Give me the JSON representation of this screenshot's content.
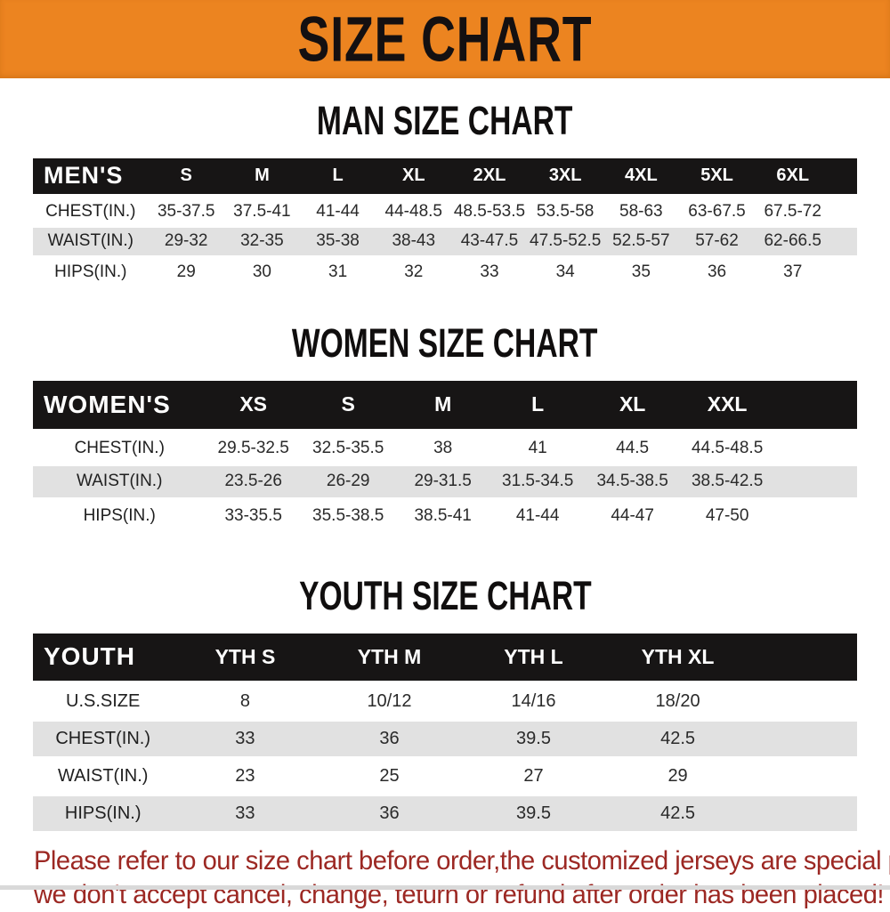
{
  "banner": {
    "title": "SIZE CHART"
  },
  "colors": {
    "banner_bg": "#ec8420",
    "header_bar": "#171515",
    "row_stripe": "#e1e1e1",
    "footer_text": "#9c2823"
  },
  "sections": [
    {
      "heading": "MAN SIZE CHART",
      "header_label": "MEN'S",
      "columns": [
        "S",
        "M",
        "L",
        "XL",
        "2XL",
        "3XL",
        "4XL",
        "5XL",
        "6XL"
      ],
      "rows": [
        {
          "label": "CHEST(IN.)",
          "values": [
            "35-37.5",
            "37.5-41",
            "41-44",
            "44-48.5",
            "48.5-53.5",
            "53.5-58",
            "58-63",
            "63-67.5",
            "67.5-72"
          ]
        },
        {
          "label": "WAIST(IN.)",
          "values": [
            "29-32",
            "32-35",
            "35-38",
            "38-43",
            "43-47.5",
            "47.5-52.5",
            "52.5-57",
            "57-62",
            "62-66.5"
          ]
        },
        {
          "label": "HIPS(IN.)",
          "values": [
            "29",
            "30",
            "31",
            "32",
            "33",
            "34",
            "35",
            "36",
            "37"
          ]
        }
      ]
    },
    {
      "heading": "WOMEN SIZE CHART",
      "header_label": "WOMEN'S",
      "columns": [
        "XS",
        "S",
        "M",
        "L",
        "XL",
        "XXL"
      ],
      "rows": [
        {
          "label": "CHEST(IN.)",
          "values": [
            "29.5-32.5",
            "32.5-35.5",
            "38",
            "41",
            "44.5",
            "44.5-48.5"
          ]
        },
        {
          "label": "WAIST(IN.)",
          "values": [
            "23.5-26",
            "26-29",
            "29-31.5",
            "31.5-34.5",
            "34.5-38.5",
            "38.5-42.5"
          ]
        },
        {
          "label": "HIPS(IN.)",
          "values": [
            "33-35.5",
            "35.5-38.5",
            "38.5-41",
            "41-44",
            "44-47",
            "47-50"
          ]
        }
      ]
    },
    {
      "heading": "YOUTH SIZE CHART",
      "header_label": "YOUTH",
      "columns": [
        "YTH S",
        "YTH M",
        "YTH L",
        "YTH XL"
      ],
      "rows": [
        {
          "label": "U.S.SIZE",
          "values": [
            "8",
            "10/12",
            "14/16",
            "18/20"
          ]
        },
        {
          "label": "CHEST(IN.)",
          "values": [
            "33",
            "36",
            "39.5",
            "42.5"
          ]
        },
        {
          "label": "WAIST(IN.)",
          "values": [
            "23",
            "25",
            "27",
            "29"
          ]
        },
        {
          "label": "HIPS(IN.)",
          "values": [
            "33",
            "36",
            "39.5",
            "42.5"
          ]
        }
      ]
    }
  ],
  "footer": {
    "line1": "Please refer to our size chart before order,the customized jerseys are special products,",
    "line2": "we don't accept cancel, change, teturn or refund after order has been placed!"
  }
}
